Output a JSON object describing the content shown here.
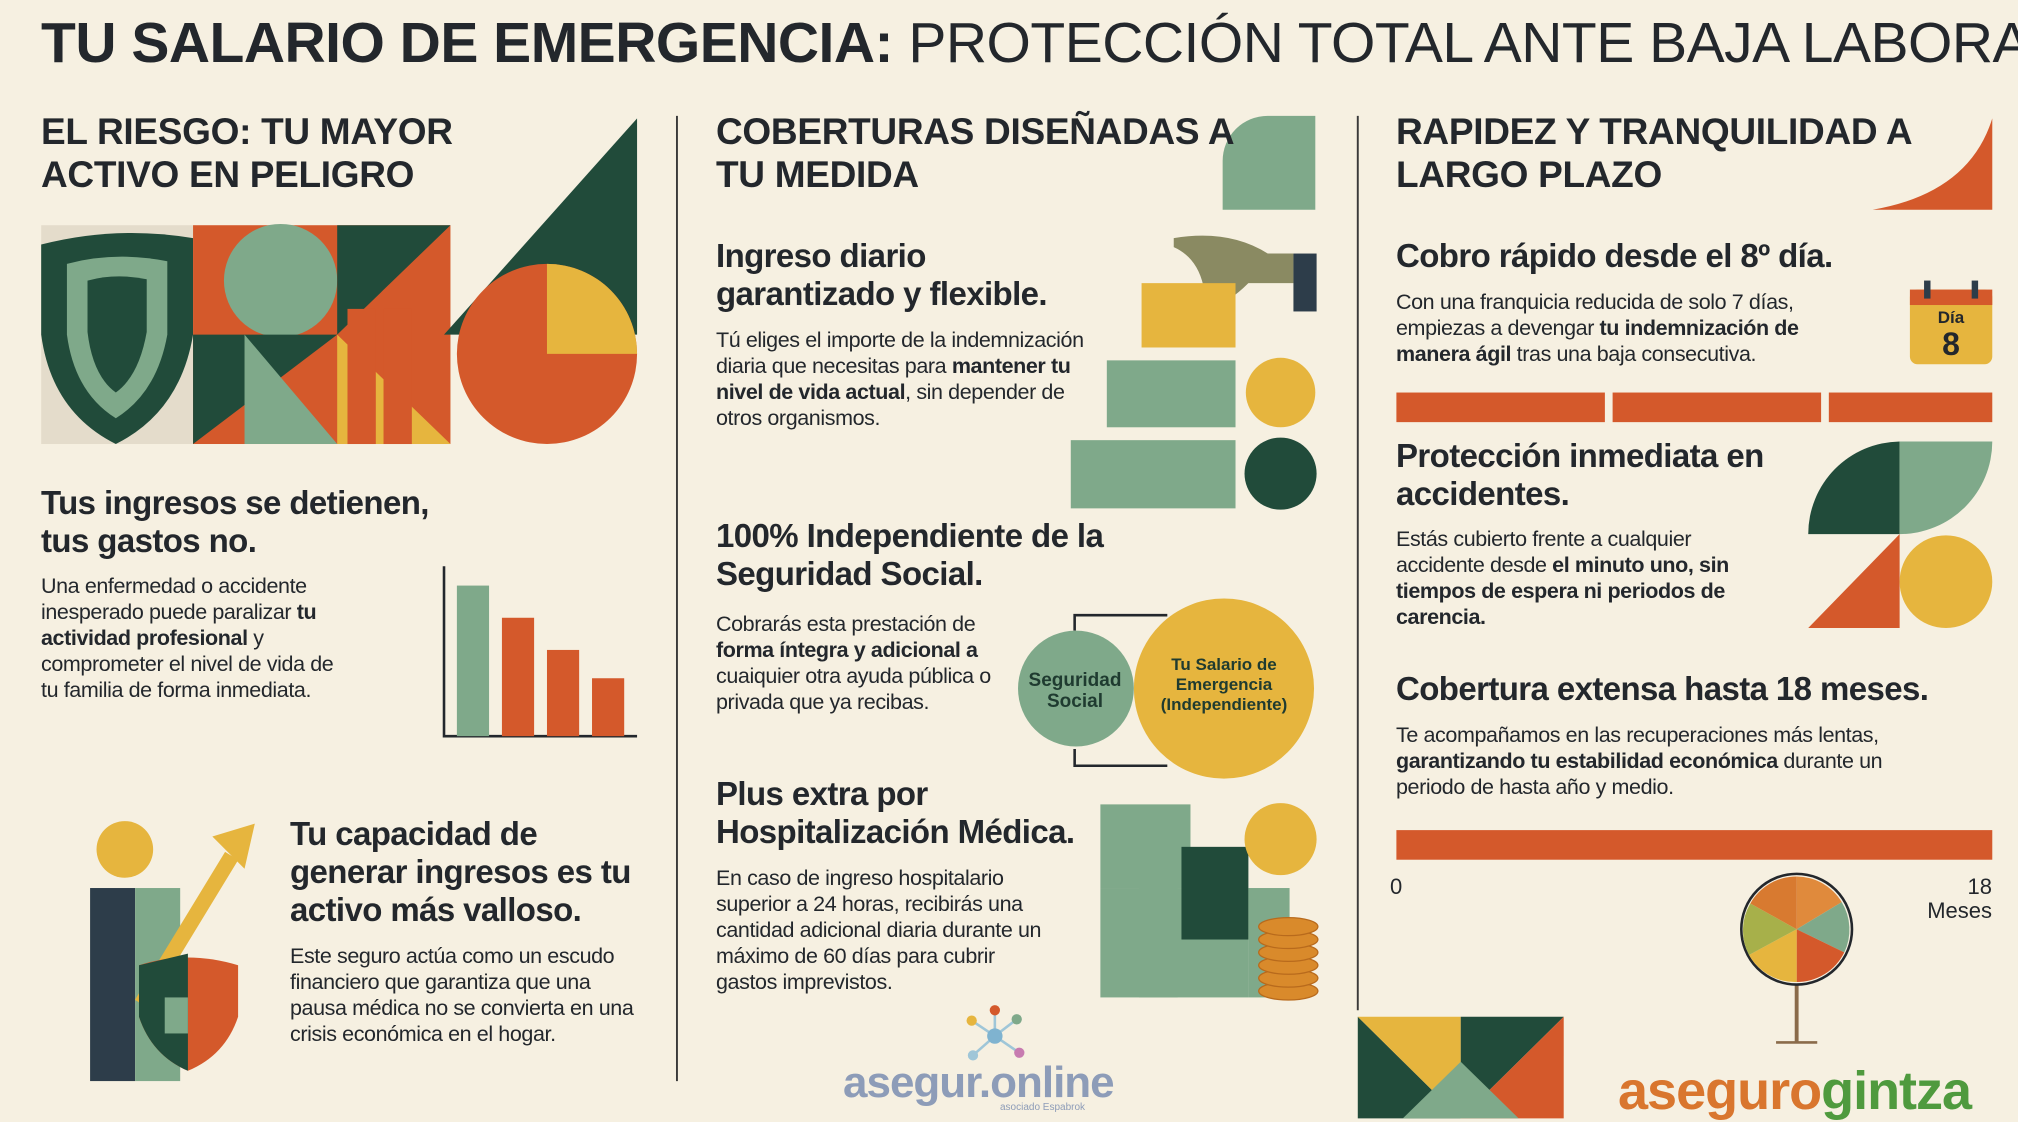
{
  "header": {
    "title_bold": "TU SALARIO DE EMERGENCIA:",
    "title_rest": "PROTECCIÓN TOTAL ANTE BAJA LABORAL"
  },
  "columns": [
    {
      "heading": "EL RIESGO: TU MAYOR ACTIVO EN PELIGRO",
      "blocks": [
        {
          "title": "Tus ingresos se detienen, tus gastos no.",
          "body": [
            {
              "text": "Una enfermedad o accidente inesperado puede paralizar ",
              "bold": false
            },
            {
              "text": "tu actividad profesional",
              "bold": true
            },
            {
              "text": " y comprometer el nivel de vida de tu familia de forma inmediata.",
              "bold": false
            }
          ]
        },
        {
          "title": "Tu capacidad de generar ingresos es tu activo más valloso.",
          "body": [
            {
              "text": "Este seguro actúa como un escudo financiero que garantiza que una pausa médica no se convierta en una crisis económica en el hogar.",
              "bold": false
            }
          ]
        }
      ]
    },
    {
      "heading": "COBERTURAS DISEÑADAS A TU MEDIDA",
      "blocks": [
        {
          "title": "Ingreso diario garantizado y flexible.",
          "body": [
            {
              "text": "Tú eliges el importe de la indemnización diaria que necesitas para ",
              "bold": false
            },
            {
              "text": "mantener tu nivel de vida actual",
              "bold": true
            },
            {
              "text": ", sin depender de otros organismos.",
              "bold": false
            }
          ]
        },
        {
          "title": "100% Independiente de la Seguridad Social.",
          "body": [
            {
              "text": "Cobrarás esta prestación de ",
              "bold": false
            },
            {
              "text": "forma íntegra y adicional a",
              "bold": true
            },
            {
              "text": " cuaiquier otra ayuda pública o privada que ya recibas.",
              "bold": false
            }
          ]
        },
        {
          "title": "Plus extra por Hospitalización Médica.",
          "body": [
            {
              "text": "En caso de ingreso hospitalario superior a 24 horas, recibirás una cantidad adicional diaria durante un máximo de 60 días para cubrir gastos imprevistos.",
              "bold": false
            }
          ]
        }
      ]
    },
    {
      "heading": "RAPIDEZ Y TRANQUILIDAD A LARGO PLAZO",
      "blocks": [
        {
          "title": "Cobro rápido desde el 8º día.",
          "body": [
            {
              "text": "Con una franquicia reducida de solo 7 días, empiezas a devengar ",
              "bold": false
            },
            {
              "text": "tu indemnización de manera ágil",
              "bold": true
            },
            {
              "text": " tras una baja consecutiva.",
              "bold": false
            }
          ]
        },
        {
          "title": "Protección inmediata en accidentes.",
          "body": [
            {
              "text": "Estás cubierto frente a cualquier accidente desde ",
              "bold": false
            },
            {
              "text": "el minuto uno, sin tiempos de espera ni periodos de carencia.",
              "bold": true
            }
          ]
        },
        {
          "title": "Cobertura extensa hasta 18 meses.",
          "body": [
            {
              "text": "Te acompañamos en las recuperaciones más lentas, ",
              "bold": false
            },
            {
              "text": "garantizando tu estabilidad económica",
              "bold": true
            },
            {
              "text": " durante un periodo de hasta año y medio.",
              "bold": false
            }
          ]
        }
      ]
    }
  ],
  "venn": {
    "left": "Seguridad Social",
    "right": "Tu Salario de Emergencia (Independiente)"
  },
  "calendar": {
    "label": "Día",
    "day": 8
  },
  "timeline": {
    "start": 0,
    "end": 18,
    "unit": "Meses"
  },
  "logos": {
    "center": "asegur.online",
    "center_note": "asociado Espabrok",
    "right_a": "aseguro",
    "right_b": "gintza"
  }
}
